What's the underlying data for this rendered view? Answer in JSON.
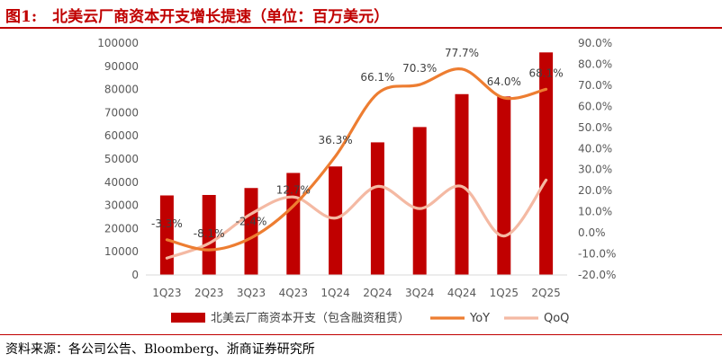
{
  "figure": {
    "title": "图1:　北美云厂商资本开支增长提速（单位：百万美元）",
    "source": "资料来源：各公司公告、Bloomberg、浙商证券研究所"
  },
  "colors": {
    "brand": "#c00000",
    "bar": "#c00000",
    "yoy": "#ed7d31",
    "qoq": "#f4b9a3",
    "axis_text": "#595959"
  },
  "chart_data": {
    "type": "bar",
    "categories": [
      "1Q23",
      "2Q23",
      "3Q23",
      "4Q23",
      "1Q24",
      "2Q24",
      "3Q24",
      "4Q24",
      "1Q25",
      "2Q25"
    ],
    "series": [
      {
        "name": "北美云厂商资本开支（包含融资租赁）",
        "type": "bar",
        "axis": "left",
        "values": [
          34300,
          34500,
          37500,
          44000,
          46800,
          57200,
          63800,
          78000,
          77000,
          96000
        ]
      },
      {
        "name": "YoY",
        "type": "line",
        "axis": "right",
        "values": [
          -3.3,
          -8.1,
          -2.4,
          12.7,
          36.3,
          66.1,
          70.3,
          77.7,
          64.0,
          68.1
        ],
        "labels": [
          "-3.3%",
          "-8.1%",
          "-2.4%",
          "12.7%",
          "36.3%",
          "66.1%",
          "70.3%",
          "77.7%",
          "64.0%",
          "68.1%"
        ]
      },
      {
        "name": "QoQ",
        "type": "line",
        "axis": "right",
        "values": [
          -12,
          -5,
          9,
          17,
          7,
          22,
          11.5,
          22,
          -1.5,
          25
        ]
      }
    ],
    "y_left": {
      "range": [
        0,
        100000
      ],
      "ticks": [
        "0",
        "10000",
        "20000",
        "30000",
        "40000",
        "50000",
        "60000",
        "70000",
        "80000",
        "90000",
        "100000"
      ]
    },
    "y_right": {
      "range": [
        -20,
        90
      ],
      "ticks": [
        "-20.0%",
        "-10.0%",
        "0.0%",
        "10.0%",
        "20.0%",
        "30.0%",
        "40.0%",
        "50.0%",
        "60.0%",
        "70.0%",
        "80.0%",
        "90.0%"
      ]
    },
    "grid": false,
    "legend": "bottom"
  }
}
